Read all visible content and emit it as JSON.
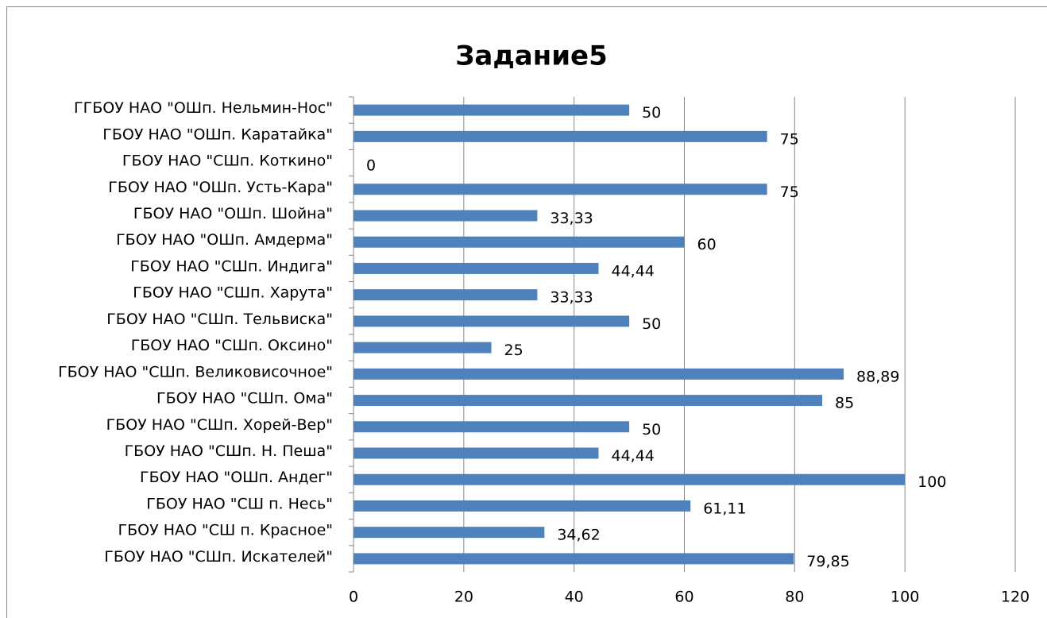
{
  "chart_data": {
    "type": "bar",
    "orientation": "horizontal",
    "title": "Задание5",
    "categories": [
      "ГГБОУ НАО \"ОШп. Нельмин-Нос\"",
      "ГБОУ НАО \"ОШп. Каратайка\"",
      "ГБОУ НАО \"СШп. Коткино\"",
      "ГБОУ НАО \"ОШп. Усть-Кара\"",
      "ГБОУ НАО \"ОШп. Шойна\"",
      "ГБОУ НАО \"ОШп. Амдерма\"",
      "ГБОУ НАО \"СШп. Индига\"",
      "ГБОУ НАО \"СШп. Харута\"",
      "ГБОУ НАО \"СШп. Тельвиска\"",
      "ГБОУ НАО \"СШп. Оксино\"",
      "ГБОУ НАО \"СШп. Великовисочное\"",
      "ГБОУ НАО \"СШп. Ома\"",
      "ГБОУ НАО \"СШп. Хорей-Вер\"",
      "ГБОУ НАО \"СШп. Н. Пеша\"",
      "ГБОУ НАО \"ОШп. Андег\"",
      "ГБОУ НАО \"СШ п. Несь\"",
      "ГБОУ НАО \"СШ п. Красное\"",
      "ГБОУ НАО \"СШп. Искателей\""
    ],
    "values": [
      50,
      75,
      0,
      75,
      33.33,
      60,
      44.44,
      33.33,
      50,
      25,
      88.89,
      85,
      50,
      44.44,
      100,
      61.11,
      34.62,
      79.85
    ],
    "value_labels": [
      "50",
      "75",
      "0",
      "75",
      "33,33",
      "60",
      "44,44",
      "33,33",
      "50",
      "25",
      "88,89",
      "85",
      "50",
      "44,44",
      "100",
      "61,11",
      "34,62",
      "79,85"
    ],
    "color": "#4f81bd",
    "xlim": [
      0,
      120
    ],
    "xticks": [
      0,
      20,
      40,
      60,
      80,
      100,
      120
    ],
    "grid": true
  }
}
